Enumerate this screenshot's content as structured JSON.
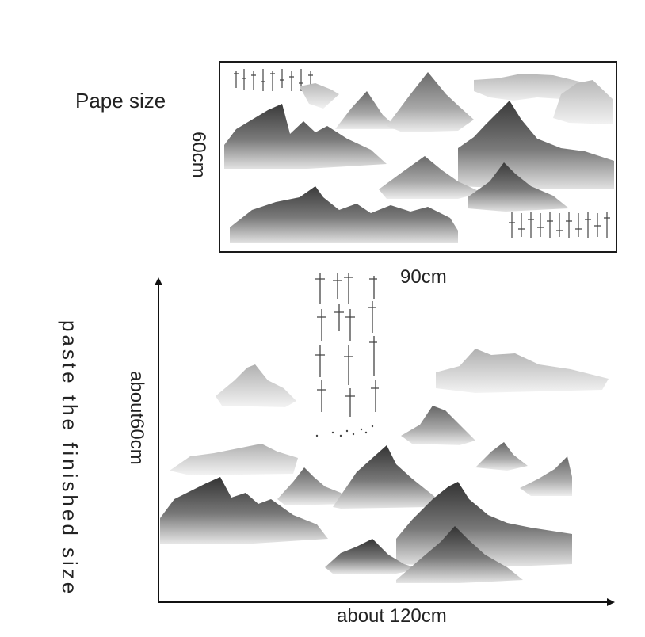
{
  "labels": {
    "paper_size": "Pape size",
    "sheet_height": "60cm",
    "sheet_width": "90cm",
    "finished_caption": "paste the finished size",
    "finished_height": "about60cm",
    "finished_width": "about 120cm"
  },
  "colors": {
    "ink_dark": "#3c3c3c",
    "ink_mid": "#8a8a8a",
    "ink_light": "#d6d6d6",
    "axis": "#111111"
  }
}
